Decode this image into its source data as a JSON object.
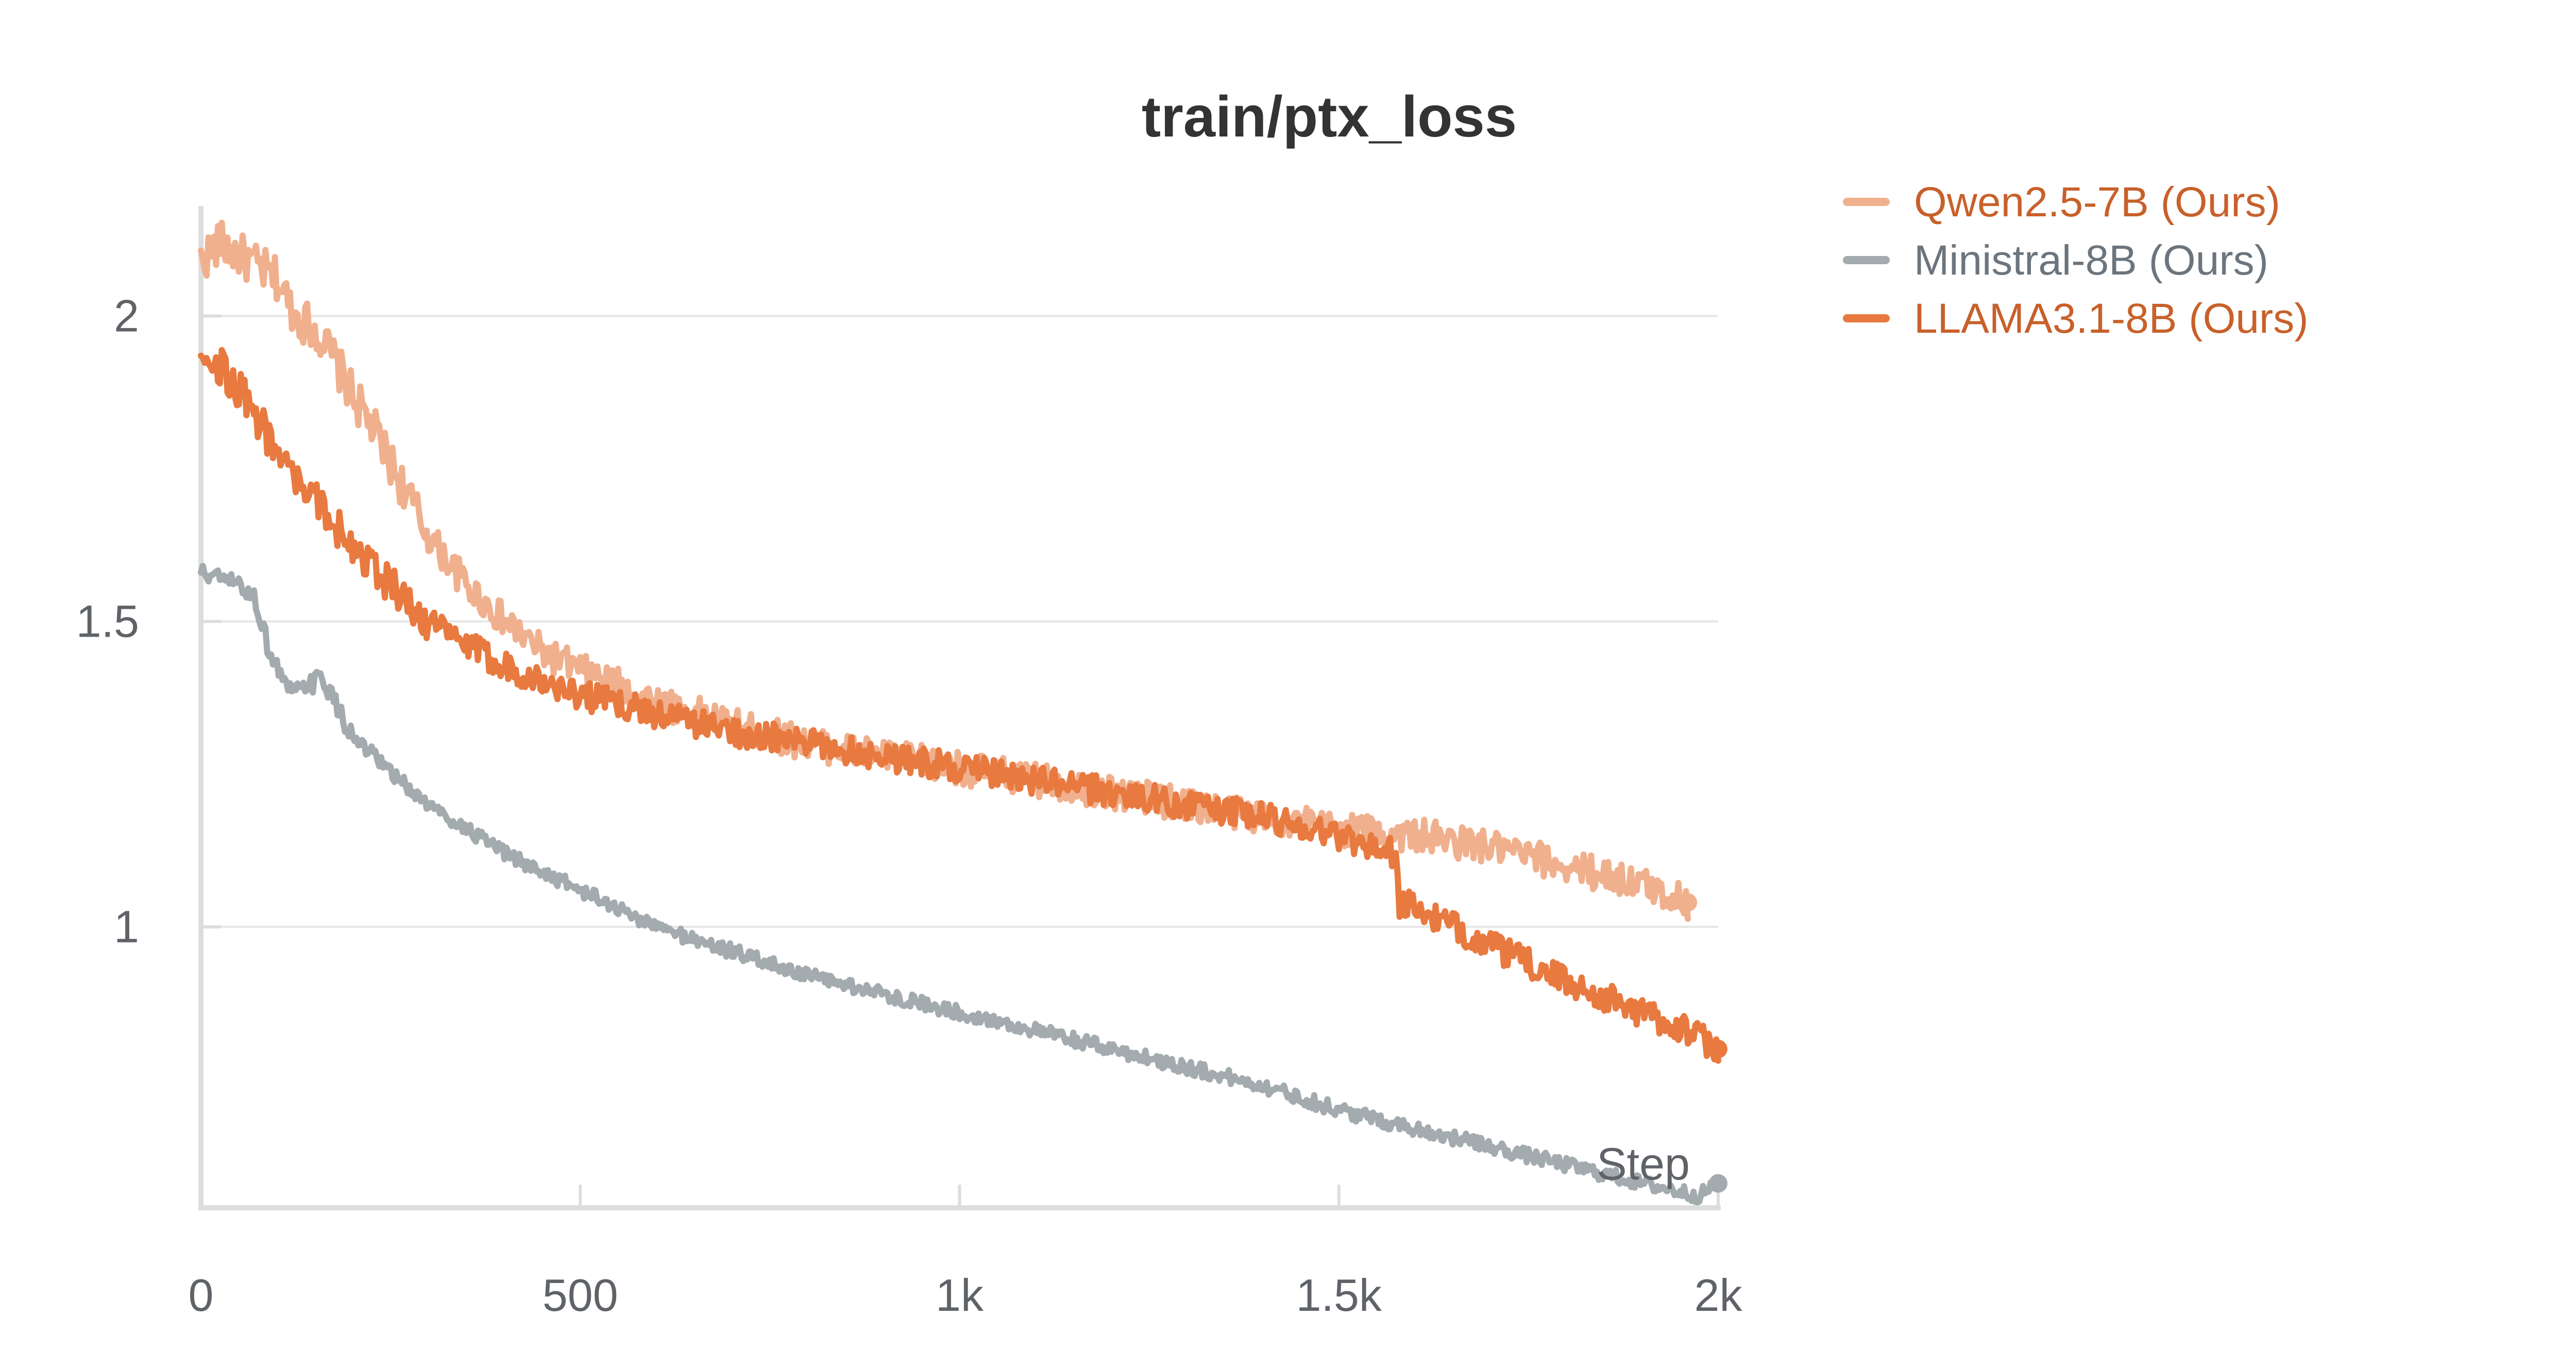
{
  "chart_data": {
    "type": "line",
    "title": "train/ptx_loss",
    "xlabel": "Step",
    "ylabel": "",
    "xlim": [
      0,
      2000
    ],
    "ylim": [
      0.54,
      2.18
    ],
    "x_ticks": [
      {
        "value": 0,
        "label": "0"
      },
      {
        "value": 500,
        "label": "500"
      },
      {
        "value": 1000,
        "label": "1k"
      },
      {
        "value": 1500,
        "label": "1.5k"
      },
      {
        "value": 2000,
        "label": "2k"
      }
    ],
    "y_ticks": [
      {
        "value": 1,
        "label": "1"
      },
      {
        "value": 1.5,
        "label": "1.5"
      },
      {
        "value": 2,
        "label": "2"
      }
    ],
    "grid": true,
    "legend_position": "top-right",
    "series": [
      {
        "name": "Qwen2.5-7B (Ours)",
        "color": "#f0b08e",
        "label_color": "#c8602a",
        "x": [
          0,
          25,
          50,
          75,
          100,
          125,
          150,
          175,
          200,
          225,
          250,
          275,
          300,
          350,
          400,
          450,
          500,
          600,
          700,
          800,
          900,
          1000,
          1100,
          1200,
          1300,
          1400,
          1500,
          1600,
          1700,
          1800,
          1900,
          1960
        ],
        "values": [
          2.09,
          2.12,
          2.1,
          2.08,
          2.06,
          2.0,
          1.98,
          1.93,
          1.87,
          1.82,
          1.76,
          1.7,
          1.64,
          1.56,
          1.5,
          1.45,
          1.42,
          1.37,
          1.33,
          1.3,
          1.28,
          1.26,
          1.24,
          1.22,
          1.2,
          1.18,
          1.16,
          1.15,
          1.13,
          1.1,
          1.07,
          1.04
        ]
      },
      {
        "name": "Ministral-8B (Ours)",
        "color": "#a3abaf",
        "label_color": "#6c757d",
        "x": [
          0,
          25,
          50,
          70,
          80,
          90,
          120,
          150,
          160,
          175,
          200,
          250,
          300,
          400,
          500,
          600,
          700,
          800,
          900,
          1000,
          1100,
          1200,
          1300,
          1400,
          1500,
          1600,
          1700,
          1800,
          1900,
          1975,
          2000
        ],
        "values": [
          1.58,
          1.57,
          1.56,
          1.54,
          1.5,
          1.45,
          1.38,
          1.4,
          1.41,
          1.37,
          1.31,
          1.25,
          1.2,
          1.12,
          1.06,
          1.0,
          0.96,
          0.92,
          0.89,
          0.86,
          0.83,
          0.8,
          0.77,
          0.74,
          0.7,
          0.67,
          0.64,
          0.61,
          0.58,
          0.56,
          0.58
        ]
      },
      {
        "name": "LLAMA3.1-8B (Ours)",
        "color": "#e87a40",
        "label_color": "#c8602a",
        "x": [
          0,
          25,
          50,
          75,
          100,
          125,
          150,
          175,
          200,
          225,
          250,
          275,
          300,
          350,
          400,
          450,
          500,
          600,
          700,
          800,
          900,
          1000,
          1100,
          1200,
          1300,
          1400,
          1500,
          1575,
          1580,
          1600,
          1700,
          1800,
          1900,
          1960,
          2000
        ],
        "values": [
          1.95,
          1.92,
          1.88,
          1.83,
          1.78,
          1.73,
          1.7,
          1.66,
          1.63,
          1.59,
          1.56,
          1.53,
          1.5,
          1.46,
          1.43,
          1.4,
          1.38,
          1.35,
          1.32,
          1.3,
          1.28,
          1.26,
          1.24,
          1.22,
          1.2,
          1.18,
          1.15,
          1.12,
          1.04,
          1.03,
          0.97,
          0.91,
          0.86,
          0.83,
          0.8
        ]
      }
    ]
  }
}
